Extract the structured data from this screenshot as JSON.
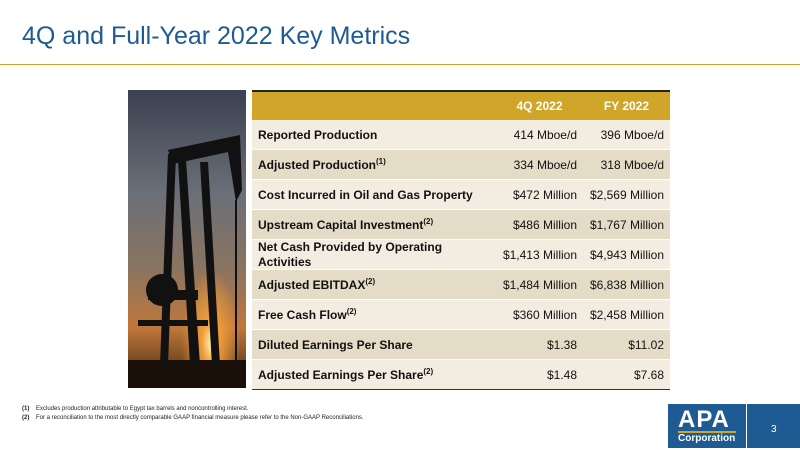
{
  "title": "4Q and Full-Year 2022 Key Metrics",
  "table": {
    "headers": [
      "",
      "4Q 2022",
      "FY 2022"
    ],
    "rows": [
      {
        "label": "Reported Production",
        "sup": "",
        "q4": "414 Mboe/d",
        "fy": "396 Mboe/d"
      },
      {
        "label": "Adjusted Production",
        "sup": "(1)",
        "q4": "334 Mboe/d",
        "fy": "318 Mboe/d"
      },
      {
        "label": "Cost Incurred in Oil and Gas Property",
        "sup": "",
        "q4": "$472 Million",
        "fy": "$2,569 Million"
      },
      {
        "label": "Upstream Capital Investment",
        "sup": "(2)",
        "q4": "$486 Million",
        "fy": "$1,767 Million"
      },
      {
        "label": "Net Cash Provided by Operating Activities",
        "sup": "",
        "q4": "$1,413 Million",
        "fy": "$4,943 Million"
      },
      {
        "label": "Adjusted EBITDAX",
        "sup": "(2)",
        "q4": "$1,484 Million",
        "fy": "$6,838 Million"
      },
      {
        "label": "Free Cash Flow",
        "sup": "(2)",
        "q4": "$360 Million",
        "fy": "$2,458 Million"
      },
      {
        "label": "Diluted Earnings Per Share",
        "sup": "",
        "q4": "$1.38",
        "fy": "$11.02"
      },
      {
        "label": "Adjusted Earnings Per Share",
        "sup": "(2)",
        "q4": "$1.48",
        "fy": "$7.68"
      }
    ]
  },
  "footnotes": [
    {
      "num": "(1)",
      "text": "Excludes production attributable to Egypt tax barrels and noncontrolling interest."
    },
    {
      "num": "(2)",
      "text": "For a reconciliation to the most directly comparable GAAP financial measure please refer to the Non-GAAP Reconciliations."
    }
  ],
  "logo": {
    "name": "APA",
    "sub": "Corporation"
  },
  "page_number": "3",
  "colors": {
    "title": "#1f5b93",
    "header_gold": "#cfa52a",
    "row_light": "#f2ede0",
    "row_dark": "#e4dcc6",
    "logo_blue": "#1f5b93"
  }
}
